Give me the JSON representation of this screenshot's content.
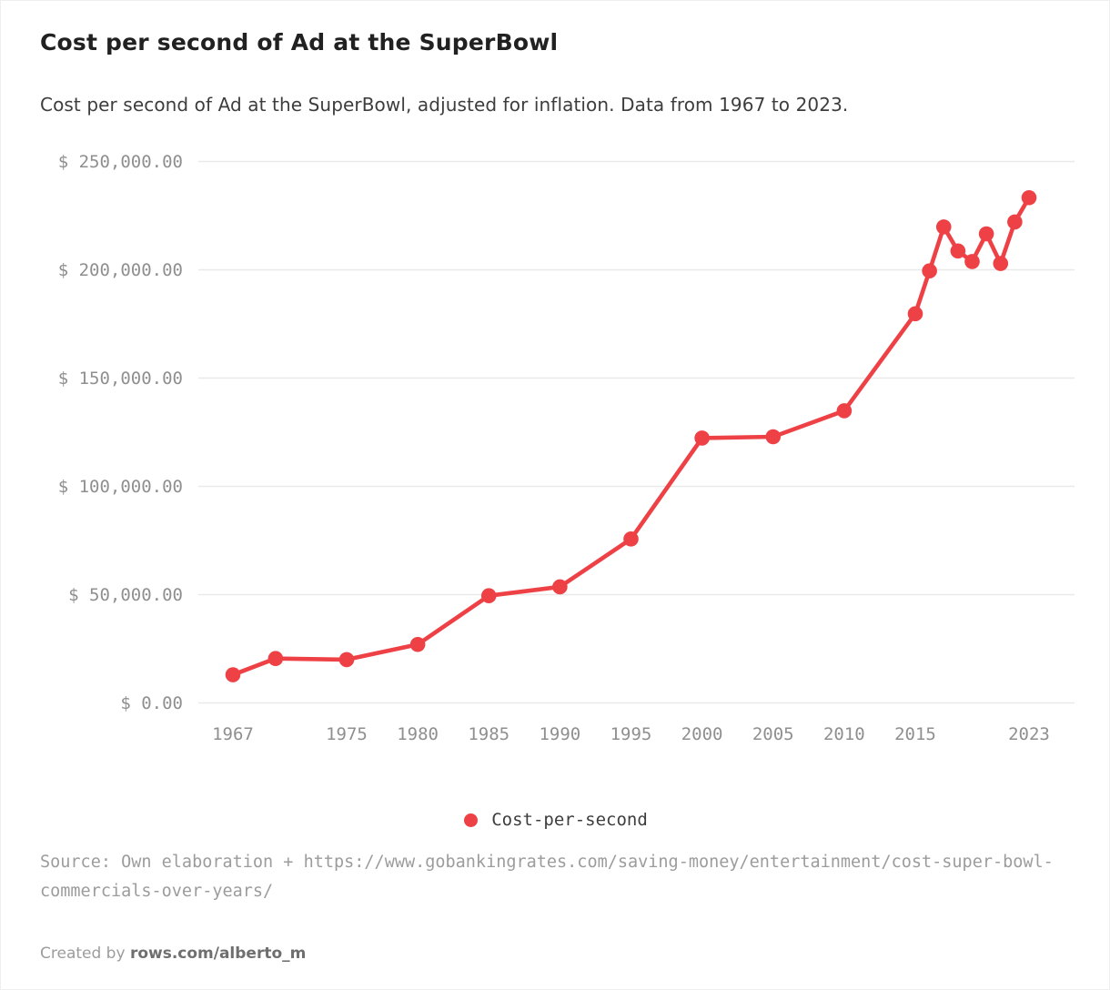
{
  "header": {
    "title": "Cost per second of Ad at the SuperBowl",
    "subtitle": "Cost per second of Ad at the SuperBowl, adjusted for inflation. Data from 1967 to 2023."
  },
  "chart_data": {
    "type": "line",
    "title": "Cost per second of Ad at the SuperBowl",
    "x": [
      1967,
      1970,
      1975,
      1980,
      1985,
      1990,
      1995,
      2000,
      2005,
      2010,
      2015,
      2016,
      2017,
      2018,
      2019,
      2020,
      2021,
      2022,
      2023
    ],
    "series": [
      {
        "name": "Cost-per-second",
        "values": [
          13000,
          20500,
          20000,
          27000,
          49500,
          53600,
          75700,
          122300,
          122900,
          134900,
          179700,
          199500,
          219800,
          208700,
          203800,
          216600,
          202900,
          222100,
          233300
        ]
      }
    ],
    "xlabel": "",
    "ylabel": "",
    "ylim": [
      0,
      250000
    ],
    "grid": "horizontal",
    "legend_position": "bottom-center",
    "marker": "circle",
    "y_ticks": [
      {
        "value": 250000,
        "label": "$ 250,000.00"
      },
      {
        "value": 200000,
        "label": "$ 200,000.00"
      },
      {
        "value": 150000,
        "label": "$ 150,000.00"
      },
      {
        "value": 100000,
        "label": "$ 100,000.00"
      },
      {
        "value": 50000,
        "label": "$ 50,000.00"
      },
      {
        "value": 0,
        "label": "$ 0.00"
      }
    ],
    "x_ticks": [
      {
        "value": 1967,
        "label": "1967"
      },
      {
        "value": 1975,
        "label": "1975"
      },
      {
        "value": 1980,
        "label": "1980"
      },
      {
        "value": 1985,
        "label": "1985"
      },
      {
        "value": 1990,
        "label": "1990"
      },
      {
        "value": 1995,
        "label": "1995"
      },
      {
        "value": 2000,
        "label": "2000"
      },
      {
        "value": 2005,
        "label": "2005"
      },
      {
        "value": 2010,
        "label": "2010"
      },
      {
        "value": 2015,
        "label": "2015"
      },
      {
        "value": 2023,
        "label": "2023"
      }
    ],
    "colors": {
      "series": "#ee4146",
      "grid": "#e9e9e9",
      "tick_label": "#8f8f8f"
    }
  },
  "legend": {
    "label": "Cost-per-second"
  },
  "source": {
    "text": "Source: Own elaboration + https://www.gobankingrates.com/saving-money/entertainment/cost-super-bowl-commercials-over-years/"
  },
  "footer": {
    "created_by": "Created by ",
    "link": "rows.com/alberto_m"
  }
}
